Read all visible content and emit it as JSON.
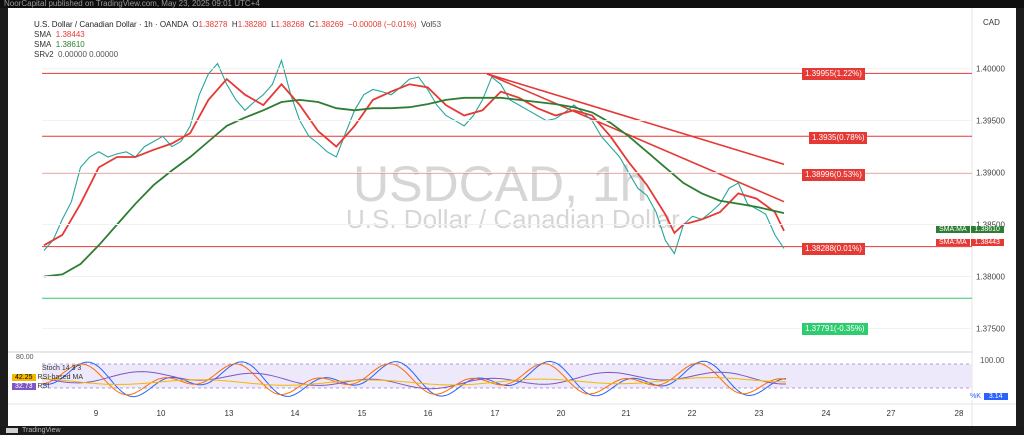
{
  "browser_bar_text": "NoorCapital published on TradingView.com, May 23, 2025 09:01 UTC+4",
  "footer_brand": "TradingView",
  "currency": "CAD",
  "legend": {
    "pair": "U.S. Dollar / Canadian Dollar · 1h · OANDA",
    "o_label": "O",
    "o": "1.38278",
    "h_label": "H",
    "h": "1.38280",
    "l_label": "L",
    "l": "1.38268",
    "c_label": "C",
    "c": "1.38269",
    "change": "−0.00008 (−0.01%)",
    "vol_label": "Vol",
    "vol": "53",
    "sma1_label": "SMA",
    "sma1_value": "1.38443",
    "sma2_label": "SMA",
    "sma2_value": "1.38610",
    "srv2_label": "SRv2",
    "srv2_values": "0.00000  0.00000"
  },
  "watermark": {
    "symbol": "USDCAD, 1h",
    "name": "U.S. Dollar / Canadian Dollar"
  },
  "level_labels": [
    "1.39955(1.22%)",
    "1.3935(0.78%)",
    "1.38996(0.53%)",
    "1.38288(0.01%)",
    "1.37791(-0.35%)"
  ],
  "axis_tag_sma1": {
    "label": "SMA:MA",
    "value": "1.38610"
  },
  "axis_tag_sma2": {
    "label": "SMA:MA",
    "value": "1.38443"
  },
  "stoch_legend": {
    "line1": "Stoch 14 3 3",
    "line2_value": "42.25",
    "line2_label": "RSI-based MA",
    "line3_value": "32.73",
    "line3_label": "RSI"
  },
  "osc_tags": {
    "k_label": "%K",
    "k_value": "3.14"
  },
  "colors": {
    "price": "#26a69a",
    "price_down": "#ef5350",
    "sma_fast": "#e53935",
    "sma_slow": "#2e7d32",
    "resistance_line": "#e53935",
    "level_red": "#e53935",
    "level_green": "#2ecc71",
    "stoch_k": "#2962ff",
    "stoch_d": "#ff6d00",
    "rsi": "#7e57c2",
    "rsi_ma": "#f5b700",
    "band": "#e9e3f7"
  },
  "chart_data": [
    {
      "type": "line",
      "title": "USDCAD, 1h",
      "subtitle": "U.S. Dollar / Canadian Dollar",
      "x_ticks": [
        "9",
        "10",
        "13",
        "14",
        "15",
        "16",
        "17",
        "20",
        "21",
        "22",
        "23",
        "24",
        "27",
        "28"
      ],
      "y_ticks": [
        "1.40000",
        "1.39500",
        "1.39000",
        "1.38500",
        "1.38000",
        "1.37500"
      ],
      "ylim": [
        1.3735,
        1.4045
      ],
      "series": [
        {
          "name": "price",
          "points": [
            [
              0,
              1.3825
            ],
            [
              2,
              1.3835
            ],
            [
              4,
              1.3855
            ],
            [
              6,
              1.3872
            ],
            [
              8,
              1.3905
            ],
            [
              10,
              1.3915
            ],
            [
              12,
              1.392
            ],
            [
              14,
              1.3915
            ],
            [
              16,
              1.3918
            ],
            [
              18,
              1.392
            ],
            [
              20,
              1.3915
            ],
            [
              22,
              1.3925
            ],
            [
              24,
              1.393
            ],
            [
              26,
              1.3935
            ],
            [
              28,
              1.3925
            ],
            [
              30,
              1.393
            ],
            [
              32,
              1.3945
            ],
            [
              34,
              1.3975
            ],
            [
              36,
              1.3995
            ],
            [
              38,
              1.4005
            ],
            [
              40,
              1.3985
            ],
            [
              42,
              1.397
            ],
            [
              44,
              1.396
            ],
            [
              46,
              1.3968
            ],
            [
              48,
              1.3975
            ],
            [
              50,
              1.3985
            ],
            [
              52,
              1.4008
            ],
            [
              54,
              1.3975
            ],
            [
              56,
              1.395
            ],
            [
              58,
              1.3935
            ],
            [
              60,
              1.3928
            ],
            [
              62,
              1.392
            ],
            [
              64,
              1.3915
            ],
            [
              66,
              1.3938
            ],
            [
              68,
              1.396
            ],
            [
              70,
              1.3975
            ],
            [
              72,
              1.398
            ],
            [
              74,
              1.3978
            ],
            [
              76,
              1.3975
            ],
            [
              78,
              1.3982
            ],
            [
              80,
              1.399
            ],
            [
              82,
              1.3992
            ],
            [
              84,
              1.398
            ],
            [
              86,
              1.3965
            ],
            [
              88,
              1.3955
            ],
            [
              90,
              1.395
            ],
            [
              92,
              1.3945
            ],
            [
              94,
              1.3955
            ],
            [
              96,
              1.397
            ],
            [
              98,
              1.3992
            ],
            [
              100,
              1.3985
            ],
            [
              102,
              1.397
            ],
            [
              104,
              1.3965
            ],
            [
              106,
              1.396
            ],
            [
              108,
              1.3955
            ],
            [
              110,
              1.395
            ],
            [
              112,
              1.3952
            ],
            [
              114,
              1.3958
            ],
            [
              116,
              1.3965
            ],
            [
              118,
              1.3958
            ],
            [
              120,
              1.395
            ],
            [
              122,
              1.3935
            ],
            [
              124,
              1.3925
            ],
            [
              126,
              1.3915
            ],
            [
              128,
              1.39
            ],
            [
              130,
              1.3885
            ],
            [
              132,
              1.3878
            ],
            [
              134,
              1.3862
            ],
            [
              136,
              1.3835
            ],
            [
              138,
              1.3822
            ],
            [
              140,
              1.385
            ],
            [
              142,
              1.3858
            ],
            [
              144,
              1.3855
            ],
            [
              146,
              1.3862
            ],
            [
              148,
              1.387
            ],
            [
              150,
              1.3885
            ],
            [
              152,
              1.389
            ],
            [
              154,
              1.387
            ],
            [
              156,
              1.3865
            ],
            [
              158,
              1.386
            ],
            [
              160,
              1.384
            ],
            [
              162,
              1.3827
            ]
          ]
        },
        {
          "name": "SMA 1.38443",
          "points": [
            [
              0,
              1.383
            ],
            [
              4,
              1.384
            ],
            [
              8,
              1.387
            ],
            [
              12,
              1.3905
            ],
            [
              16,
              1.3915
            ],
            [
              20,
              1.3915
            ],
            [
              24,
              1.3922
            ],
            [
              28,
              1.3928
            ],
            [
              32,
              1.3938
            ],
            [
              36,
              1.397
            ],
            [
              40,
              1.399
            ],
            [
              44,
              1.3975
            ],
            [
              48,
              1.3965
            ],
            [
              52,
              1.3985
            ],
            [
              56,
              1.3965
            ],
            [
              60,
              1.394
            ],
            [
              64,
              1.3925
            ],
            [
              68,
              1.3945
            ],
            [
              72,
              1.397
            ],
            [
              76,
              1.3978
            ],
            [
              80,
              1.3985
            ],
            [
              84,
              1.3982
            ],
            [
              88,
              1.3965
            ],
            [
              92,
              1.3955
            ],
            [
              96,
              1.396
            ],
            [
              100,
              1.3978
            ],
            [
              104,
              1.3972
            ],
            [
              108,
              1.3962
            ],
            [
              112,
              1.3955
            ],
            [
              116,
              1.396
            ],
            [
              120,
              1.3955
            ],
            [
              124,
              1.3935
            ],
            [
              128,
              1.391
            ],
            [
              132,
              1.3888
            ],
            [
              136,
              1.386
            ],
            [
              138,
              1.3842
            ],
            [
              140,
              1.385
            ],
            [
              144,
              1.3855
            ],
            [
              148,
              1.3862
            ],
            [
              152,
              1.388
            ],
            [
              156,
              1.3875
            ],
            [
              160,
              1.3862
            ],
            [
              162,
              1.3844
            ]
          ]
        },
        {
          "name": "SMA 1.38610",
          "points": [
            [
              0,
              1.38
            ],
            [
              4,
              1.3802
            ],
            [
              8,
              1.3812
            ],
            [
              12,
              1.383
            ],
            [
              16,
              1.385
            ],
            [
              20,
              1.387
            ],
            [
              24,
              1.3888
            ],
            [
              28,
              1.3902
            ],
            [
              32,
              1.3915
            ],
            [
              36,
              1.393
            ],
            [
              40,
              1.3945
            ],
            [
              44,
              1.3953
            ],
            [
              48,
              1.396
            ],
            [
              52,
              1.3968
            ],
            [
              56,
              1.397
            ],
            [
              60,
              1.3968
            ],
            [
              64,
              1.3962
            ],
            [
              68,
              1.396
            ],
            [
              72,
              1.3962
            ],
            [
              76,
              1.3962
            ],
            [
              80,
              1.3963
            ],
            [
              84,
              1.3966
            ],
            [
              88,
              1.397
            ],
            [
              92,
              1.3972
            ],
            [
              96,
              1.3972
            ],
            [
              100,
              1.3972
            ],
            [
              104,
              1.397
            ],
            [
              108,
              1.3968
            ],
            [
              112,
              1.3966
            ],
            [
              116,
              1.3963
            ],
            [
              120,
              1.3958
            ],
            [
              124,
              1.3948
            ],
            [
              128,
              1.3935
            ],
            [
              132,
              1.392
            ],
            [
              136,
              1.3905
            ],
            [
              140,
              1.389
            ],
            [
              144,
              1.388
            ],
            [
              148,
              1.3873
            ],
            [
              152,
              1.387
            ],
            [
              156,
              1.3867
            ],
            [
              160,
              1.3863
            ],
            [
              162,
              1.3861
            ]
          ]
        }
      ],
      "horizontal_levels": [
        1.39955,
        1.3935,
        1.38996,
        1.38288,
        1.37791
      ],
      "trendlines": [
        {
          "from": [
            97,
            1.3995
          ],
          "to": [
            162,
            1.3908
          ]
        },
        {
          "from": [
            97,
            1.3995
          ],
          "to": [
            162,
            1.3872
          ]
        }
      ]
    },
    {
      "type": "line",
      "title": "Stoch 14 3 3 / RSI",
      "y_ticks": [
        "100.00",
        "80.00"
      ],
      "series": [
        {
          "name": "RSI",
          "last": "32.73"
        },
        {
          "name": "RSI-based MA",
          "last": "42.25"
        },
        {
          "name": "%K",
          "last": "3.14"
        }
      ]
    }
  ]
}
